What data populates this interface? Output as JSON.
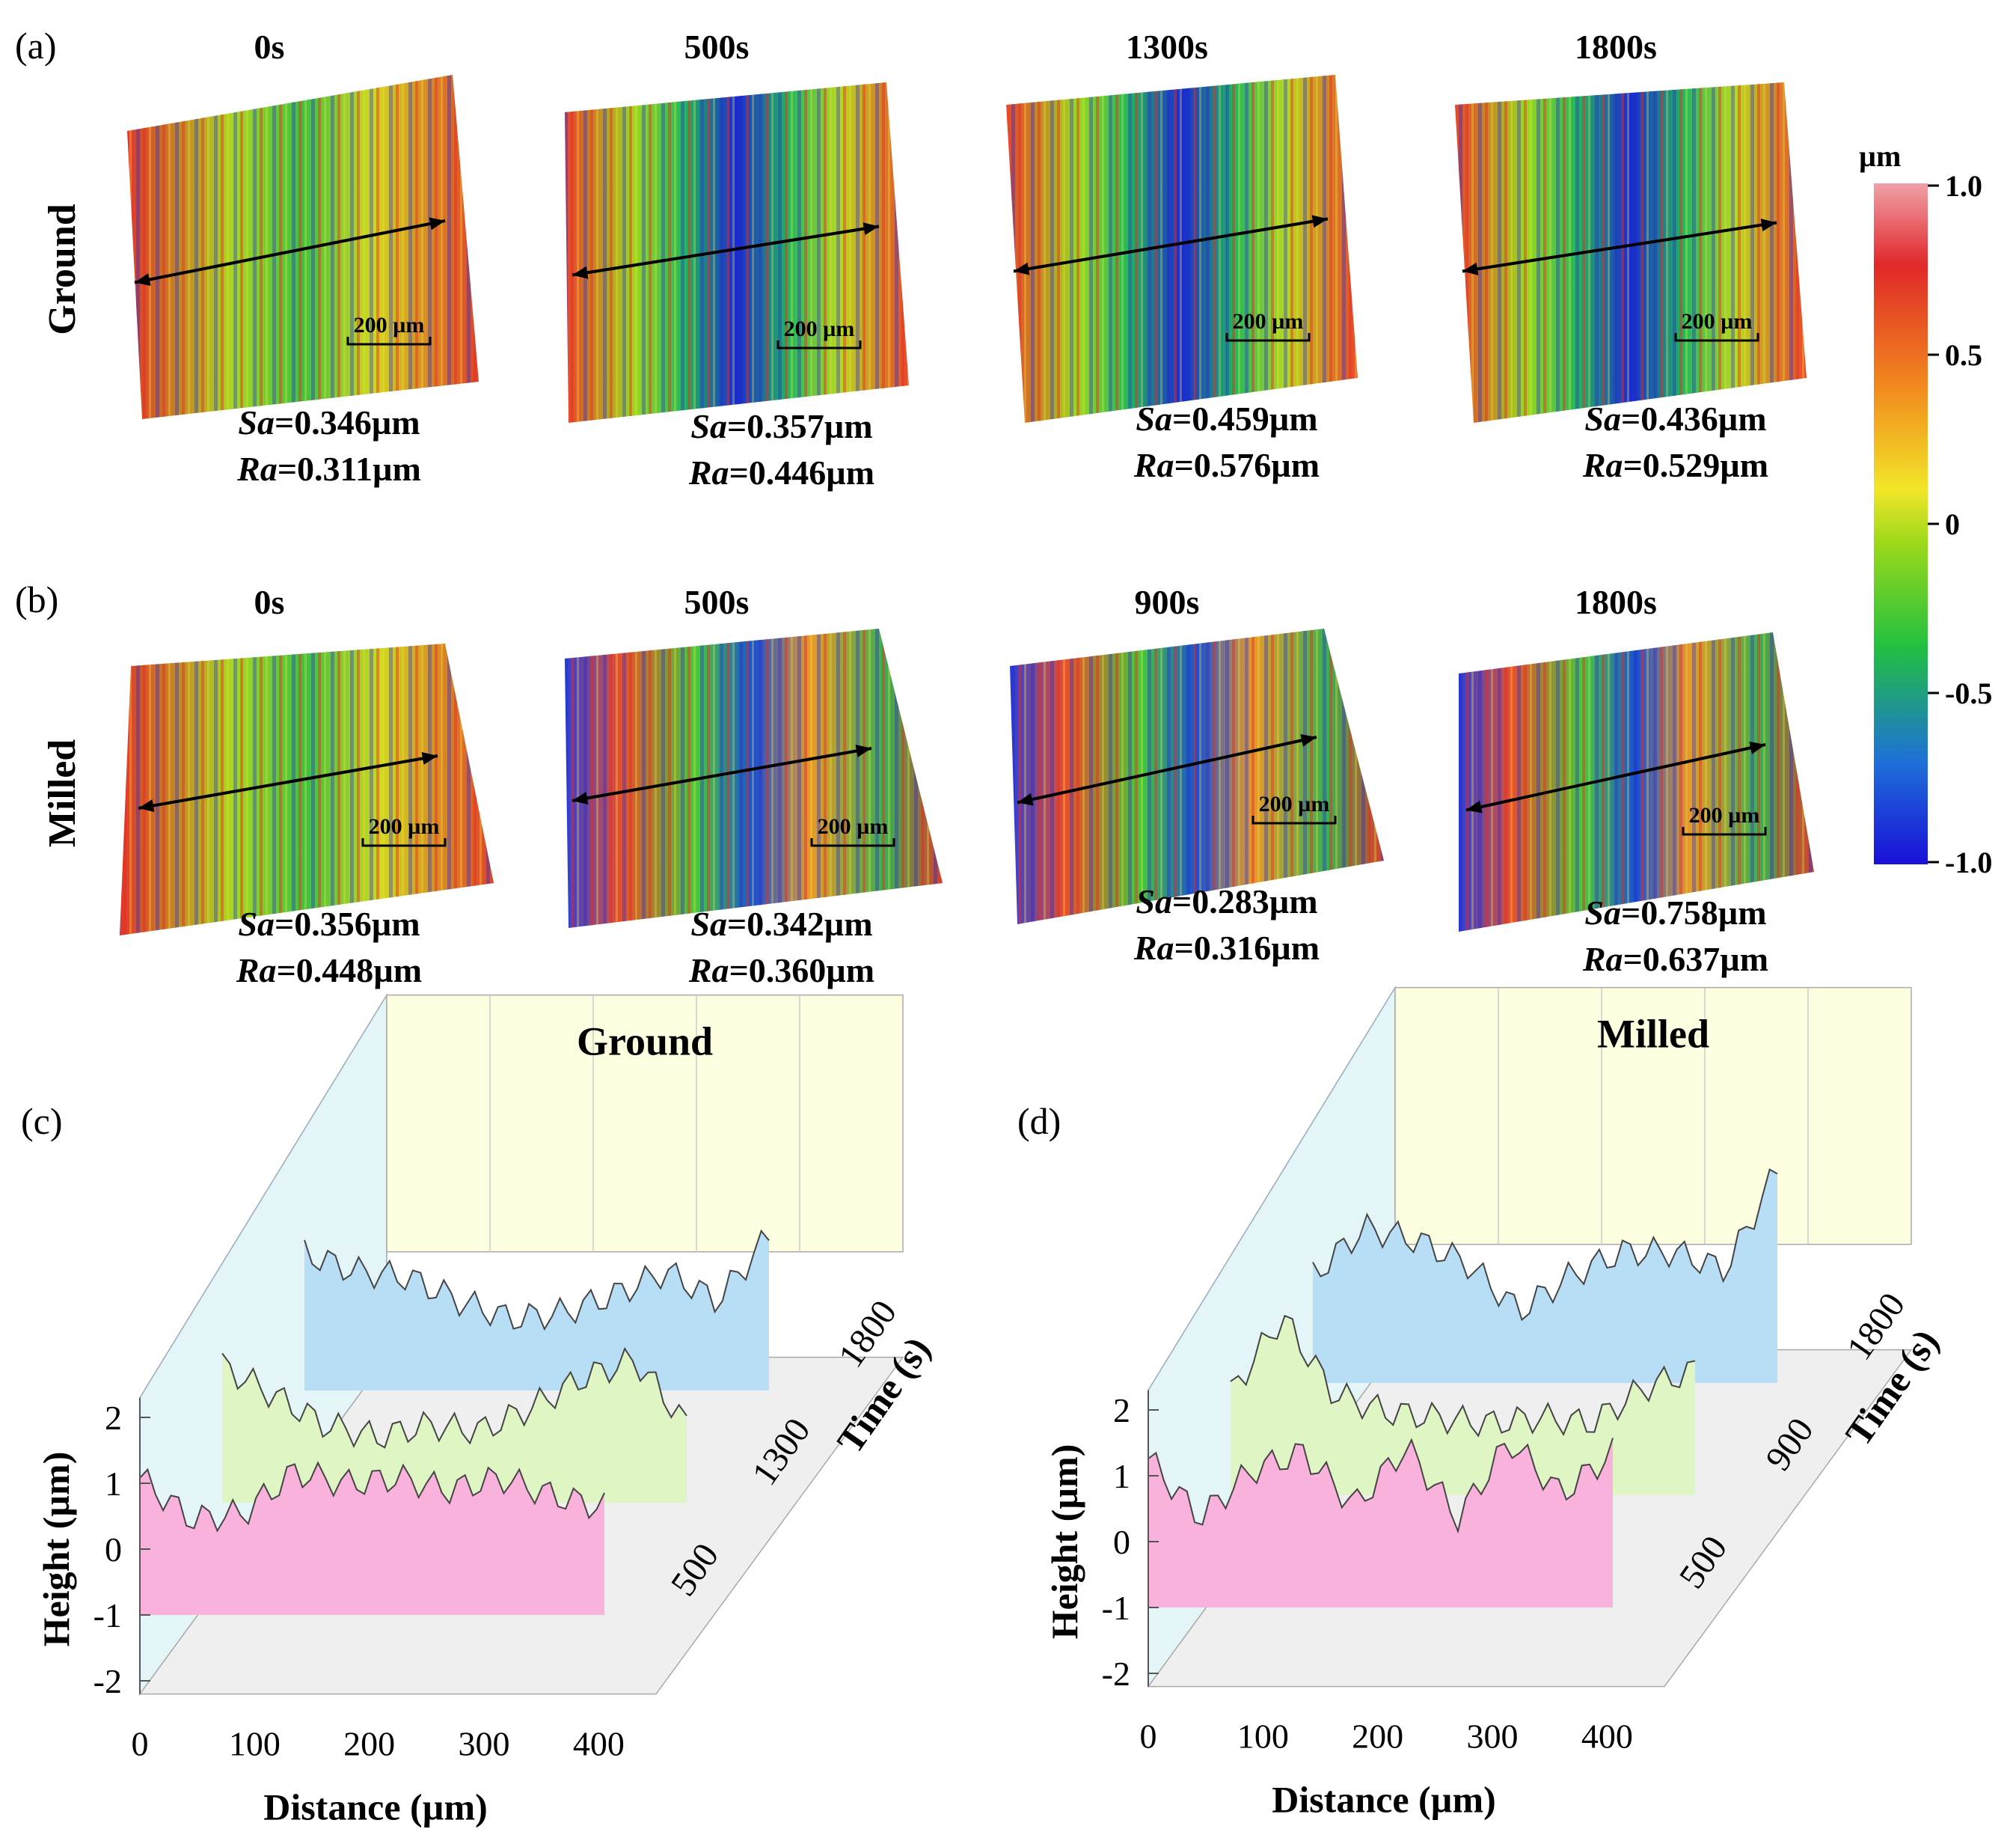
{
  "colorbar": {
    "unit": "µm",
    "ticks": [
      "1.0",
      "0.5",
      "0",
      "-0.5",
      "-1.0"
    ],
    "stops": [
      "#1a10d8",
      "#1e6fd8",
      "#22c040",
      "#9ad81a",
      "#f2e628",
      "#f28a1e",
      "#e0282a",
      "#f0a0a8"
    ]
  },
  "panel_a": {
    "label": "(a)",
    "row_label": "Ground",
    "scale_bar": "200 µm",
    "items": [
      {
        "time": "0s",
        "sa_label": "Sa",
        "sa_value": "=0.346µm",
        "ra_label": "Ra",
        "ra_value": "=0.311µm"
      },
      {
        "time": "500s",
        "sa_label": "Sa",
        "sa_value": "=0.357µm",
        "ra_label": "Ra",
        "ra_value": "=0.446µm"
      },
      {
        "time": "1300s",
        "sa_label": "Sa",
        "sa_value": "=0.459µm",
        "ra_label": "Ra",
        "ra_value": "=0.576µm"
      },
      {
        "time": "1800s",
        "sa_label": "Sa",
        "sa_value": "=0.436µm",
        "ra_label": "Ra",
        "ra_value": "=0.529µm"
      }
    ]
  },
  "panel_b": {
    "label": "(b)",
    "row_label": "Milled",
    "scale_bar": "200 µm",
    "items": [
      {
        "time": "0s",
        "sa_label": "Sa",
        "sa_value": "=0.356µm",
        "ra_label": "Ra",
        "ra_value": "=0.448µm"
      },
      {
        "time": "500s",
        "sa_label": "Sa",
        "sa_value": "=0.342µm",
        "ra_label": "Ra",
        "ra_value": "=0.360µm"
      },
      {
        "time": "900s",
        "sa_label": "Sa",
        "sa_value": "=0.283µm",
        "ra_label": "Ra",
        "ra_value": "=0.316µm"
      },
      {
        "time": "1800s",
        "sa_label": "Sa",
        "sa_value": "=0.758µm",
        "ra_label": "Ra",
        "ra_value": "=0.637µm"
      }
    ]
  },
  "chart_data": [
    {
      "type": "area",
      "panel_label": "(c)",
      "title": "Ground",
      "xlabel": "Distance (µm)",
      "ylabel": "Height (µm)",
      "zlabel": "Time (s)",
      "x_ticks": [
        "0",
        "100",
        "200",
        "300",
        "400"
      ],
      "y_ticks": [
        "2",
        "1",
        "0",
        "-1",
        "-2"
      ],
      "z_ticks": [
        "500",
        "1300",
        "1800"
      ],
      "xlim": [
        0,
        450
      ],
      "ylim": [
        -2,
        2
      ],
      "x": [
        0,
        45,
        90,
        135,
        180,
        225,
        270,
        315,
        360,
        405
      ],
      "series": [
        {
          "name": "500",
          "color": "#f9b2dc",
          "values": [
            1.2,
            0.5,
            0.6,
            1.3,
            1.1,
            1.2,
            1.0,
            1.2,
            0.9,
            0.7
          ]
        },
        {
          "name": "1300",
          "color": "#dff5c4",
          "values": [
            1.2,
            0.7,
            0.2,
            0.0,
            0.2,
            0.1,
            0.5,
            1.0,
            1.3,
            0.2
          ]
        },
        {
          "name": "1800",
          "color": "#b8def6",
          "values": [
            1.2,
            0.9,
            0.8,
            0.4,
            0.1,
            0.2,
            0.5,
            0.9,
            0.4,
            1.5
          ]
        }
      ]
    },
    {
      "type": "area",
      "panel_label": "(d)",
      "title": "Milled",
      "xlabel": "Distance (µm)",
      "ylabel": "Height (µm)",
      "zlabel": "Time (s)",
      "x_ticks": [
        "0",
        "100",
        "200",
        "300",
        "400"
      ],
      "y_ticks": [
        "2",
        "1",
        "0",
        "-1",
        "-2"
      ],
      "z_ticks": [
        "500",
        "900",
        "1800"
      ],
      "xlim": [
        0,
        450
      ],
      "ylim": [
        -2,
        2
      ],
      "x": [
        0,
        45,
        90,
        135,
        180,
        225,
        270,
        315,
        360,
        405
      ],
      "series": [
        {
          "name": "500",
          "color": "#f9b2dc",
          "values": [
            1.4,
            0.4,
            1.2,
            1.5,
            0.6,
            1.6,
            0.4,
            1.7,
            0.8,
            1.5
          ]
        },
        {
          "name": "900",
          "color": "#dff5c4",
          "values": [
            0.6,
            1.9,
            0.6,
            0.3,
            0.2,
            0.1,
            0.2,
            0.1,
            0.7,
            1.0
          ]
        },
        {
          "name": "1800",
          "color": "#b8def6",
          "values": [
            0.7,
            1.5,
            1.3,
            0.9,
            0.1,
            0.7,
            1.1,
            1.1,
            0.8,
            2.5
          ]
        }
      ]
    }
  ]
}
